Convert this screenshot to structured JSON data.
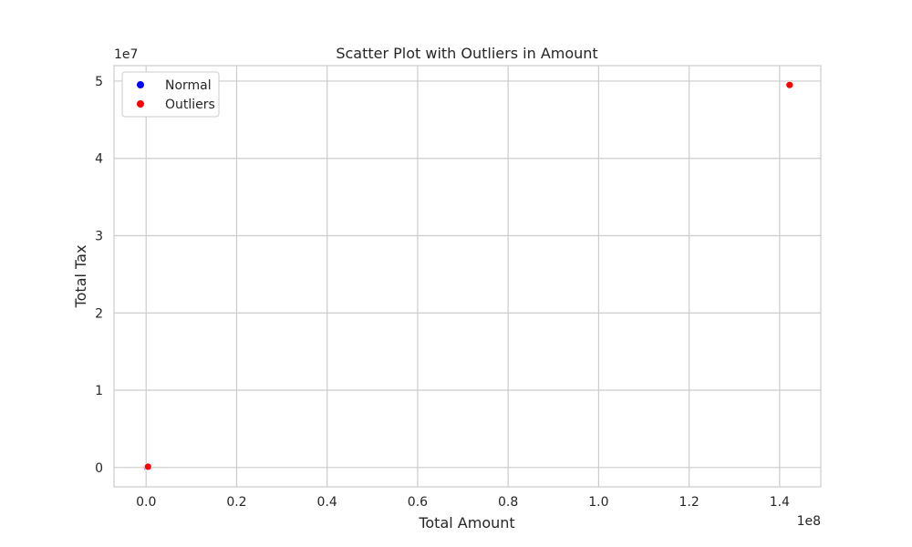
{
  "chart_data": {
    "type": "scatter",
    "title": "Scatter Plot with Outliers in Amount",
    "xlabel": "Total Amount",
    "ylabel": "Total Tax",
    "x_offset_label": "1e8",
    "y_offset_label": "1e7",
    "xlim": [
      -0.071,
      1.491
    ],
    "ylim": [
      -0.25,
      5.2
    ],
    "x_ticks": [
      0.0,
      0.2,
      0.4,
      0.6,
      0.8,
      1.0,
      1.2,
      1.4
    ],
    "x_tick_labels": [
      "0.0",
      "0.2",
      "0.4",
      "0.6",
      "0.8",
      "1.0",
      "1.2",
      "1.4"
    ],
    "y_ticks": [
      0,
      1,
      2,
      3,
      4,
      5
    ],
    "y_tick_labels": [
      "0",
      "1",
      "2",
      "3",
      "4",
      "5"
    ],
    "grid": true,
    "legend_position": "top-left",
    "series": [
      {
        "name": "Normal",
        "color": "#0000ff",
        "points": [
          [
            0.003,
            0.005
          ],
          [
            0.002,
            0.003
          ]
        ]
      },
      {
        "name": "Outliers",
        "color": "#ff0000",
        "points": [
          [
            0.004,
            0.01
          ],
          [
            1.422,
            4.95
          ]
        ]
      }
    ]
  }
}
